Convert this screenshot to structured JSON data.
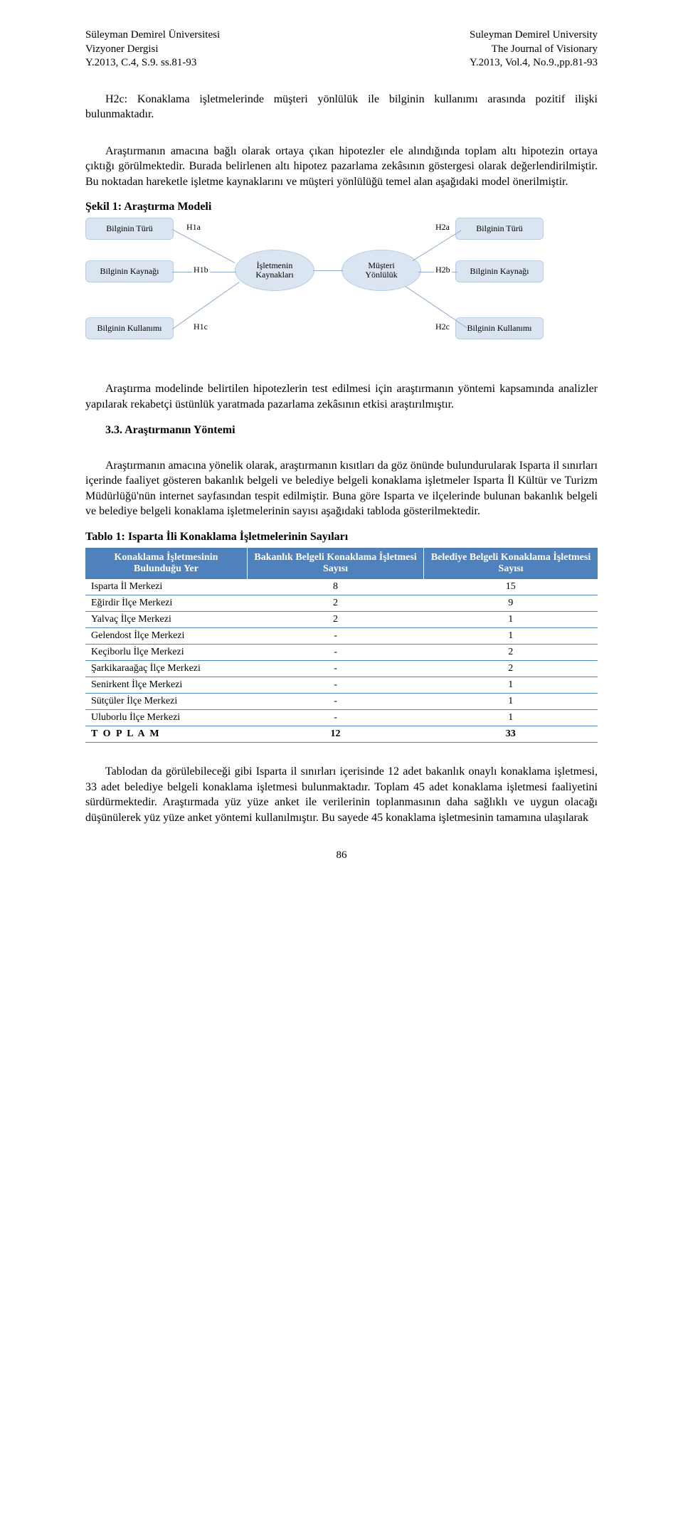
{
  "header": {
    "left1": "Süleyman Demirel Üniversitesi",
    "left2": "Vizyoner Dergisi",
    "left3": "Y.2013, C.4, S.9. ss.81-93",
    "right1": "Suleyman Demirel University",
    "right2": "The Journal of Visionary",
    "right3": "Y.2013, Vol.4, No.9.,pp.81-93"
  },
  "para1": "H2c: Konaklama işletmelerinde müşteri yönlülük ile bilginin kullanımı arasında pozitif ilişki bulunmaktadır.",
  "para2": "Araştırmanın amacına bağlı olarak ortaya çıkan hipotezler ele alındığında toplam altı hipotezin ortaya çıktığı görülmektedir. Burada belirlenen altı hipotez pazarlama zekâsının göstergesi olarak değerlendirilmiştir. Bu noktadan hareketle işletme kaynaklarını ve müşteri yönlülüğü temel alan aşağıdaki model önerilmiştir.",
  "figTitle": "Şekil 1: Araştırma Modeli",
  "diagram": {
    "nodes": {
      "n1": "Bilginin Türü",
      "n2": "Bilginin Kaynağı",
      "n3": "Bilginin Kullanımı",
      "c1a": "İşletmenin",
      "c1b": "Kaynakları",
      "c2a": "Müşteri",
      "c2b": "Yönlülük",
      "n4": "Bilginin Türü",
      "n5": "Bilginin Kaynağı",
      "n6": "Bilginin Kullanımı"
    },
    "labels": {
      "h1a": "H1a",
      "h1b": "H1b",
      "h1c": "H1c",
      "h2a": "H2a",
      "h2b": "H2b",
      "h2c": "H2c"
    }
  },
  "para3": "Araştırma modelinde belirtilen hipotezlerin test edilmesi için araştırmanın yöntemi kapsamında analizler yapılarak rekabetçi üstünlük yaratmada pazarlama zekâsının etkisi araştırılmıştır.",
  "subTitle": "3.3. Araştırmanın Yöntemi",
  "para4": "Araştırmanın amacına yönelik olarak, araştırmanın kısıtları da göz önünde bulundurularak Isparta il sınırları içerinde faaliyet gösteren bakanlık belgeli ve belediye belgeli konaklama işletmeler Isparta İl Kültür ve Turizm Müdürlüğü'nün internet sayfasından tespit edilmiştir. Buna göre Isparta ve ilçelerinde bulunan bakanlık belgeli ve belediye belgeli konaklama işletmelerinin sayısı aşağıdaki tabloda gösterilmektedir.",
  "tableTitle": "Tablo 1: Isparta İli Konaklama İşletmelerinin Sayıları",
  "table": {
    "cols": [
      "Konaklama İşletmesinin Bulunduğu Yer",
      "Bakanlık Belgeli Konaklama İşletmesi Sayısı",
      "Belediye Belgeli Konaklama İşletmesi Sayısı"
    ],
    "rows": [
      [
        "Isparta İl Merkezi",
        "8",
        "15"
      ],
      [
        "Eğirdir İlçe Merkezi",
        "2",
        "9"
      ],
      [
        "Yalvaç İlçe Merkezi",
        "2",
        "1"
      ],
      [
        "Gelendost İlçe Merkezi",
        "-",
        "1"
      ],
      [
        "Keçiborlu İlçe Merkezi",
        "-",
        "2"
      ],
      [
        "Şarkikaraağaç İlçe Merkezi",
        "-",
        "2"
      ],
      [
        "Senirkent İlçe Merkezi",
        "-",
        "1"
      ],
      [
        "Sütçüler İlçe Merkezi",
        "-",
        "1"
      ],
      [
        "Uluborlu İlçe Merkezi",
        "-",
        "1"
      ]
    ],
    "total": [
      "T O P L A M",
      "12",
      "33"
    ]
  },
  "para5": "Tablodan da görülebileceği gibi Isparta il sınırları içerisinde 12 adet bakanlık onaylı konaklama işletmesi, 33 adet belediye belgeli konaklama işletmesi bulunmaktadır. Toplam 45 adet konaklama işletmesi faaliyetini sürdürmektedir. Araştırmada yüz yüze anket ile verilerinin toplanmasının daha sağlıklı ve uygun olacağı düşünülerek yüz yüze anket yöntemi kullanılmıştır. Bu sayede 45 konaklama işletmesinin tamamına ulaşılarak",
  "pageNumber": "86"
}
